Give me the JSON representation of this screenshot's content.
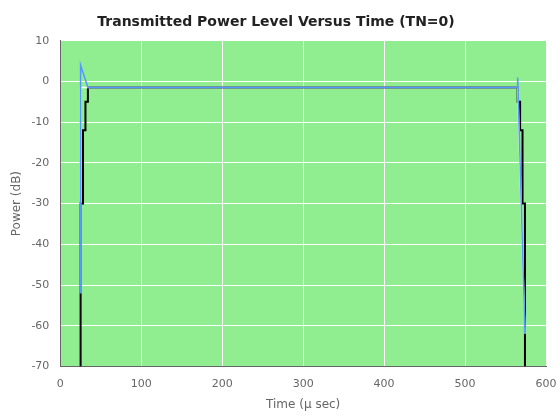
{
  "chart_data": {
    "type": "line",
    "title": "Transmitted Power Level Versus Time (TN=0)",
    "xlabel": "Time (μ sec)",
    "ylabel": "Power (dB)",
    "xlim": [
      0,
      600
    ],
    "ylim": [
      -70,
      10
    ],
    "xticks": [
      0,
      100,
      200,
      300,
      400,
      500,
      600
    ],
    "yticks": [
      10,
      0,
      -10,
      -20,
      -30,
      -40,
      -50,
      -60,
      -70
    ],
    "grid": true,
    "series": [
      {
        "color": "black",
        "x": [
          25,
          25,
          28,
          28,
          31,
          31,
          34,
          34,
          565,
          565,
          568,
          568,
          571,
          571,
          574,
          574
        ],
        "values": [
          -70,
          -30,
          -30,
          -12,
          -12,
          -5,
          -5,
          -1.5,
          -1.5,
          -5,
          -5,
          -12,
          -12,
          -30,
          -30,
          -70
        ]
      },
      {
        "color": "white",
        "x": [
          25,
          25,
          34,
          565,
          565,
          574
        ],
        "values": [
          -52,
          -1.5,
          -1.5,
          -1.5,
          -1.5,
          -62
        ]
      },
      {
        "color": "#5599ff",
        "x": [
          25,
          25,
          34,
          565,
          565,
          574
        ],
        "values": [
          -52,
          4.0,
          -1.5,
          -1.5,
          1.0,
          -62
        ]
      }
    ]
  }
}
